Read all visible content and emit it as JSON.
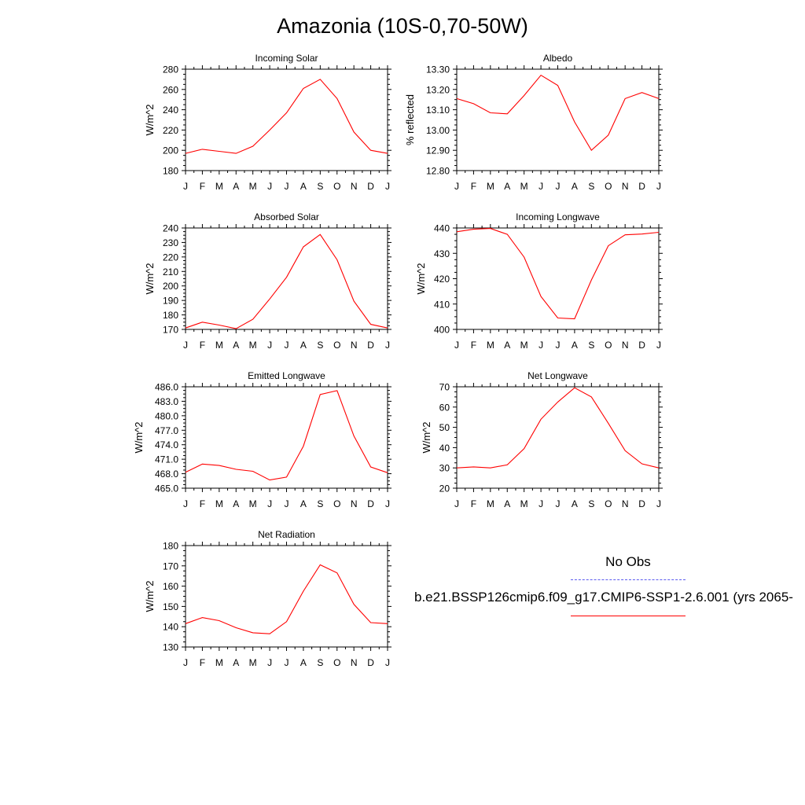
{
  "figure": {
    "title": "Amazonia (10S-0,70-50W)"
  },
  "legend": {
    "obs_label": "No Obs",
    "obs_color": "#5b5bf0",
    "case_label": "b.e21.BSSP126cmip6.f09_g17.CMIP6-SSP1-2.6.001 (yrs 2065-",
    "case_color": "#ff0000"
  },
  "chart_data": [
    {
      "type": "line",
      "title": "Incoming Solar",
      "ylabel": "W/m^2",
      "categories": [
        "J",
        "F",
        "M",
        "A",
        "M",
        "J",
        "J",
        "A",
        "S",
        "O",
        "N",
        "D",
        "J"
      ],
      "ylim": [
        180,
        280
      ],
      "yticks": [
        180,
        200,
        220,
        240,
        260,
        280
      ],
      "ytick_labels": [
        "180",
        "200",
        "220",
        "240",
        "260",
        "280"
      ],
      "values": [
        197,
        201,
        199,
        197,
        204,
        220,
        237,
        261,
        270,
        251,
        218,
        200,
        197
      ]
    },
    {
      "type": "line",
      "title": "Albedo",
      "ylabel": "% reflected",
      "categories": [
        "J",
        "F",
        "M",
        "A",
        "M",
        "J",
        "J",
        "A",
        "S",
        "O",
        "N",
        "D",
        "J"
      ],
      "ylim": [
        12.8,
        13.3
      ],
      "yticks": [
        12.8,
        12.9,
        13.0,
        13.1,
        13.2,
        13.3
      ],
      "ytick_labels": [
        "12.80",
        "12.90",
        "13.00",
        "13.10",
        "13.20",
        "13.30"
      ],
      "values": [
        13.155,
        13.13,
        13.085,
        13.08,
        13.17,
        13.27,
        13.22,
        13.04,
        12.9,
        12.975,
        13.155,
        13.185,
        13.155
      ]
    },
    {
      "type": "line",
      "title": "Absorbed Solar",
      "ylabel": "W/m^2",
      "categories": [
        "J",
        "F",
        "M",
        "A",
        "M",
        "J",
        "J",
        "A",
        "S",
        "O",
        "N",
        "D",
        "J"
      ],
      "ylim": [
        170,
        240
      ],
      "yticks": [
        170,
        180,
        190,
        200,
        210,
        220,
        230,
        240
      ],
      "ytick_labels": [
        "170",
        "180",
        "190",
        "200",
        "210",
        "220",
        "230",
        "240"
      ],
      "values": [
        171,
        175,
        173,
        170.5,
        177,
        191,
        206,
        227,
        235.5,
        218,
        189.5,
        173.5,
        171
      ]
    },
    {
      "type": "line",
      "title": "Incoming Longwave",
      "ylabel": "W/m^2",
      "categories": [
        "J",
        "F",
        "M",
        "A",
        "M",
        "J",
        "J",
        "A",
        "S",
        "O",
        "N",
        "D",
        "J"
      ],
      "ylim": [
        400,
        440
      ],
      "yticks": [
        400,
        410,
        420,
        430,
        440
      ],
      "ytick_labels": [
        "400",
        "410",
        "420",
        "430",
        "440"
      ],
      "values": [
        438.5,
        439.5,
        439.8,
        437.5,
        428.5,
        413,
        404.5,
        404.2,
        419.5,
        433,
        437.3,
        437.6,
        438.3
      ]
    },
    {
      "type": "line",
      "title": "Emitted Longwave",
      "ylabel": "W/m^2",
      "categories": [
        "J",
        "F",
        "M",
        "A",
        "M",
        "J",
        "J",
        "A",
        "S",
        "O",
        "N",
        "D",
        "J"
      ],
      "ylim": [
        465,
        486
      ],
      "yticks": [
        465,
        468,
        471,
        474,
        477,
        480,
        483,
        486
      ],
      "ytick_labels": [
        "465.0",
        "468.0",
        "471.0",
        "474.0",
        "477.0",
        "480.0",
        "483.0",
        "486.0"
      ],
      "values": [
        468.3,
        470.0,
        469.7,
        468.9,
        468.5,
        466.7,
        467.3,
        473.7,
        484.4,
        485.2,
        475.8,
        469.4,
        468.2
      ]
    },
    {
      "type": "line",
      "title": "Net Longwave",
      "ylabel": "W/m^2",
      "categories": [
        "J",
        "F",
        "M",
        "A",
        "M",
        "J",
        "J",
        "A",
        "S",
        "O",
        "N",
        "D",
        "J"
      ],
      "ylim": [
        20,
        70
      ],
      "yticks": [
        20,
        30,
        40,
        50,
        60,
        70
      ],
      "ytick_labels": [
        "20",
        "30",
        "40",
        "50",
        "60",
        "70"
      ],
      "values": [
        30,
        30.5,
        30,
        31.5,
        39.5,
        54,
        62.5,
        69.5,
        65,
        52,
        38.5,
        32,
        30
      ]
    },
    {
      "type": "line",
      "title": "Net Radiation",
      "ylabel": "W/m^2",
      "categories": [
        "J",
        "F",
        "M",
        "A",
        "M",
        "J",
        "J",
        "A",
        "S",
        "O",
        "N",
        "D",
        "J"
      ],
      "ylim": [
        130,
        180
      ],
      "yticks": [
        130,
        140,
        150,
        160,
        170,
        180
      ],
      "ytick_labels": [
        "130",
        "140",
        "150",
        "160",
        "170",
        "180"
      ],
      "values": [
        141.5,
        144.5,
        143,
        139.5,
        137,
        136.5,
        142.5,
        157.5,
        170.5,
        166.5,
        151,
        142,
        141.5
      ]
    }
  ]
}
